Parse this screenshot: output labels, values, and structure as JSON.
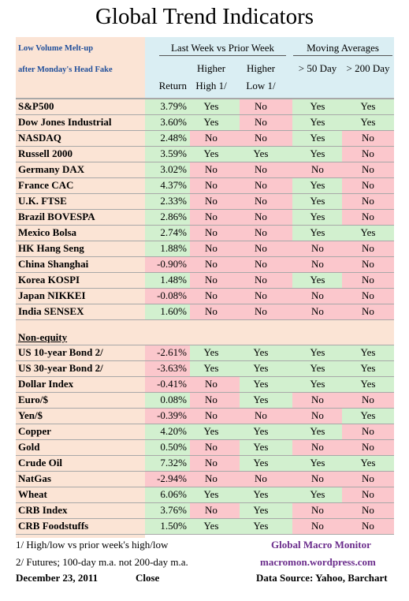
{
  "title": "Global Trend Indicators",
  "subtitle_line1": "Low Volume Melt-up",
  "subtitle_line2": "after Monday's Head Fake",
  "header": {
    "group1": "Last Week vs Prior Week",
    "group2": "Moving Averages",
    "return": "Return",
    "higher_high_a": "Higher",
    "higher_high_b": "High 1/",
    "higher_low_a": "Higher",
    "higher_low_b": "Low 1/",
    "ma50": "> 50 Day",
    "ma200": "> 200 Day"
  },
  "equity": [
    {
      "name": "S&P500",
      "ret": "3.79%",
      "hh": "Yes",
      "hl": "No",
      "m50": "Yes",
      "m200": "Yes"
    },
    {
      "name": "Dow Jones Industrial",
      "ret": "3.60%",
      "hh": "Yes",
      "hl": "No",
      "m50": "Yes",
      "m200": "Yes"
    },
    {
      "name": "NASDAQ",
      "ret": "2.48%",
      "hh": "No",
      "hl": "No",
      "m50": "Yes",
      "m200": "No"
    },
    {
      "name": "Russell 2000",
      "ret": "3.59%",
      "hh": "Yes",
      "hl": "Yes",
      "m50": "Yes",
      "m200": "No"
    },
    {
      "name": "Germany DAX",
      "ret": "3.02%",
      "hh": "No",
      "hl": "No",
      "m50": "No",
      "m200": "No"
    },
    {
      "name": "France CAC",
      "ret": "4.37%",
      "hh": "No",
      "hl": "No",
      "m50": "Yes",
      "m200": "No"
    },
    {
      "name": "U.K. FTSE",
      "ret": "2.33%",
      "hh": "No",
      "hl": "No",
      "m50": "Yes",
      "m200": "No"
    },
    {
      "name": "Brazil BOVESPA",
      "ret": "2.86%",
      "hh": "No",
      "hl": "No",
      "m50": "Yes",
      "m200": "No"
    },
    {
      "name": "Mexico Bolsa",
      "ret": "2.74%",
      "hh": "No",
      "hl": "No",
      "m50": "Yes",
      "m200": "Yes"
    },
    {
      "name": "HK  Hang Seng",
      "ret": "1.88%",
      "hh": "No",
      "hl": "No",
      "m50": "No",
      "m200": "No"
    },
    {
      "name": "China Shanghai",
      "ret": "-0.90%",
      "hh": "No",
      "hl": "No",
      "m50": "No",
      "m200": "No"
    },
    {
      "name": "Korea KOSPI",
      "ret": "1.48%",
      "hh": "No",
      "hl": "No",
      "m50": "Yes",
      "m200": "No"
    },
    {
      "name": "Japan NIKKEI",
      "ret": "-0.08%",
      "hh": "No",
      "hl": "No",
      "m50": "No",
      "m200": "No"
    },
    {
      "name": "India SENSEX",
      "ret": "1.60%",
      "hh": "No",
      "hl": "No",
      "m50": "No",
      "m200": "No"
    }
  ],
  "nonequity_label": "Non-equity",
  "nonequity": [
    {
      "name": "US 10-year Bond 2/",
      "ret": "-2.61%",
      "hh": "Yes",
      "hl": "Yes",
      "m50": "Yes",
      "m200": "Yes"
    },
    {
      "name": "US 30-year Bond 2/",
      "ret": "-3.63%",
      "hh": "Yes",
      "hl": "Yes",
      "m50": "Yes",
      "m200": "Yes"
    },
    {
      "name": "Dollar Index",
      "ret": "-0.41%",
      "hh": "No",
      "hl": "Yes",
      "m50": "Yes",
      "m200": "Yes"
    },
    {
      "name": "Euro/$",
      "ret": "0.08%",
      "hh": "No",
      "hl": "Yes",
      "m50": "No",
      "m200": "No"
    },
    {
      "name": "Yen/$",
      "ret": "-0.39%",
      "hh": "No",
      "hl": "No",
      "m50": "No",
      "m200": "Yes"
    },
    {
      "name": "Copper",
      "ret": "4.20%",
      "hh": "Yes",
      "hl": "Yes",
      "m50": "Yes",
      "m200": "No"
    },
    {
      "name": "Gold",
      "ret": "0.50%",
      "hh": "No",
      "hl": "Yes",
      "m50": "No",
      "m200": "No"
    },
    {
      "name": "Crude Oil",
      "ret": "7.32%",
      "hh": "No",
      "hl": "Yes",
      "m50": "Yes",
      "m200": "Yes"
    },
    {
      "name": "NatGas",
      "ret": "-2.94%",
      "hh": "No",
      "hl": "No",
      "m50": "No",
      "m200": "No"
    },
    {
      "name": "Wheat",
      "ret": "6.06%",
      "hh": "Yes",
      "hl": "Yes",
      "m50": "Yes",
      "m200": "No"
    },
    {
      "name": "CRB Index",
      "ret": "3.76%",
      "hh": "No",
      "hl": "Yes",
      "m50": "No",
      "m200": "No"
    },
    {
      "name": "CRB Foodstuffs",
      "ret": "1.50%",
      "hh": "Yes",
      "hl": "Yes",
      "m50": "No",
      "m200": "No"
    }
  ],
  "colors": {
    "label_bg": "#fbe4d5",
    "header_bg": "#daeef3",
    "positive": "#d2f0cf",
    "negative": "#fbc7cc",
    "monitor": "#6b2d8c"
  },
  "footer": {
    "note1": "1/  High/low vs prior week's high/low",
    "note2": "2/  Futures;  100-day m.a. not 200-day m.a.",
    "date": "December 23, 2011",
    "close": "Close",
    "monitor": "Global Macro Monitor",
    "site": "macromon.wordpress.com",
    "source": "Data Source: Yahoo, Barchart"
  }
}
